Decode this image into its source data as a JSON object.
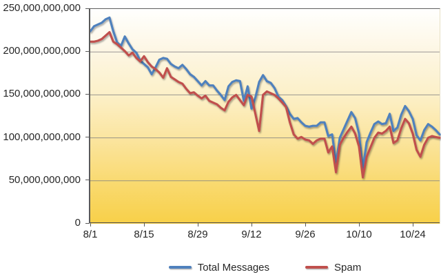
{
  "chart_data": {
    "type": "line",
    "title": "",
    "unit_multiplier": 1000000000,
    "values_unit": "billions",
    "grid": "horizontal",
    "legend_position": "bottom-center",
    "ylim_billions": [
      0,
      250
    ],
    "y_tick_values_billions": [
      250,
      200,
      150,
      100,
      50,
      0
    ],
    "y_tick_labels": [
      "250,000,000,000",
      "200,000,000,000",
      "150,000,000,000",
      "100,000,000,000",
      "50,000,000,000",
      "0"
    ],
    "x_tick_labels": [
      "8/1",
      "8/15",
      "8/29",
      "9/12",
      "9/26",
      "10/10",
      "10/24"
    ],
    "x_tick_day_indices": [
      0,
      14,
      28,
      42,
      56,
      70,
      84
    ],
    "x_range_days": [
      "8/1",
      "10/31"
    ],
    "series": [
      {
        "name": "Total Messages",
        "color": "#4F81BD",
        "values_billions": [
          224,
          230,
          232,
          234,
          238,
          240,
          224,
          211,
          207,
          218,
          210,
          203,
          199,
          190,
          186,
          182,
          174,
          182,
          191,
          193,
          192,
          186,
          183,
          181,
          185,
          180,
          174,
          171,
          166,
          161,
          166,
          161,
          161,
          155,
          150,
          144,
          160,
          165,
          167,
          166,
          143,
          160,
          134,
          147,
          165,
          173,
          166,
          164,
          158,
          148,
          144,
          137,
          128,
          122,
          123,
          118,
          114,
          113,
          114,
          114,
          118,
          118,
          102,
          104,
          71,
          100,
          110,
          120,
          130,
          123,
          105,
          64,
          95,
          106,
          116,
          119,
          116,
          117,
          128,
          108,
          112,
          127,
          137,
          131,
          122,
          103,
          97,
          109,
          116,
          113,
          109,
          104
        ]
      },
      {
        "name": "Spam",
        "color": "#C0504D",
        "values_billions": [
          212,
          212,
          213,
          215,
          219,
          223,
          212,
          209,
          205,
          201,
          196,
          199,
          193,
          189,
          195,
          188,
          183,
          180,
          176,
          170,
          181,
          171,
          168,
          165,
          163,
          157,
          152,
          153,
          149,
          146,
          149,
          143,
          141,
          139,
          135,
          132,
          142,
          147,
          150,
          144,
          138,
          150,
          148,
          128,
          108,
          150,
          154,
          152,
          150,
          146,
          141,
          136,
          118,
          104,
          99,
          101,
          98,
          97,
          93,
          97,
          99,
          99,
          83,
          90,
          60,
          92,
          100,
          107,
          113,
          105,
          90,
          54,
          78,
          89,
          100,
          106,
          105,
          108,
          113,
          94,
          97,
          111,
          122,
          117,
          105,
          86,
          78,
          92,
          100,
          102,
          101,
          100
        ]
      }
    ]
  },
  "colors": {
    "axis": "#595959",
    "gridline": "#7f7f7f",
    "plot_bg_top": "#FFFFFF",
    "plot_bg_bottom": "#F8D048",
    "text": "#262626"
  }
}
